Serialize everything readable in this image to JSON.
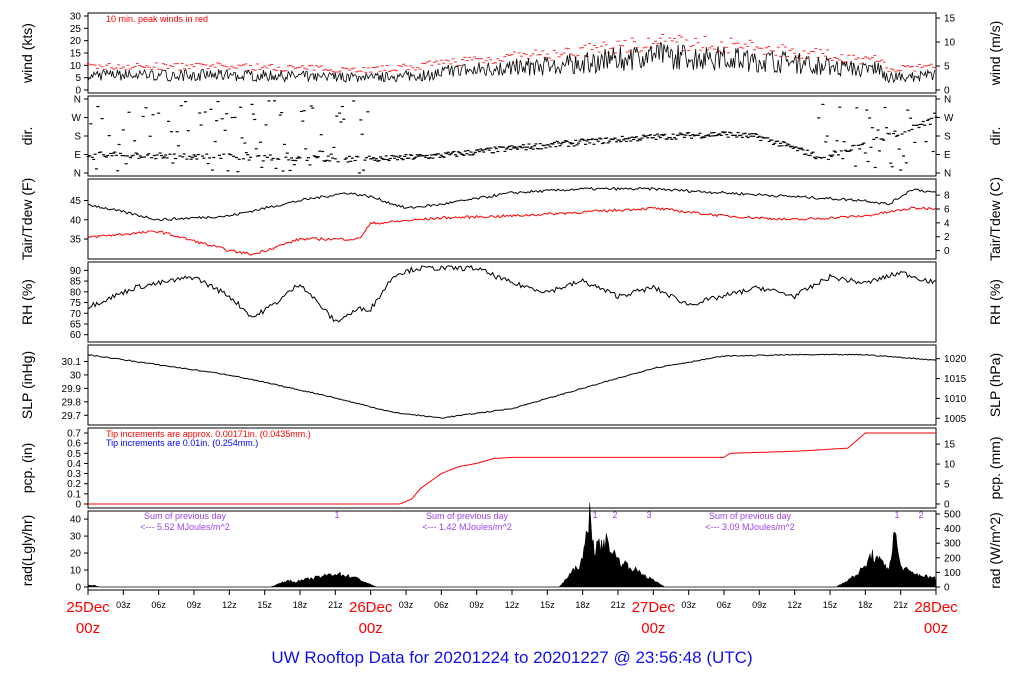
{
  "title": "UW Rooftop Data for 20201224  to  20201227 @ 23:56:48  (UTC)",
  "chart_data": [
    {
      "id": "wind",
      "type": "line",
      "ylabel": "wind (kts)",
      "y2label": "wind (m/s)",
      "ylim": [
        0,
        30
      ],
      "yticks": [
        0,
        5,
        10,
        15,
        20,
        25,
        30
      ],
      "y2lim": [
        0,
        15.43
      ],
      "y2ticks": [
        0,
        5,
        10,
        15
      ],
      "annotation": "10 min. peak winds in red",
      "annotation_color": "#ff0000",
      "series": [
        {
          "name": "wind",
          "color": "#000000",
          "x": [
            0,
            12,
            24,
            28,
            32,
            36,
            40,
            44,
            48,
            54,
            60,
            66,
            67,
            68,
            72
          ],
          "y": [
            6,
            6,
            5,
            6,
            8,
            9,
            10,
            12,
            14,
            13,
            11,
            8,
            9,
            5,
            6
          ]
        },
        {
          "name": "peak",
          "color": "#ff0000",
          "offset": 3
        }
      ]
    },
    {
      "id": "dir",
      "type": "scatter",
      "ylabel": "dir.",
      "y2label": "dir.",
      "ylim": [
        0,
        360
      ],
      "ytick_labels": [
        "N",
        "E",
        "S",
        "W",
        "N"
      ],
      "yticks": [
        0,
        90,
        180,
        270,
        360
      ],
      "series": [
        {
          "name": "direction",
          "color": "#000000",
          "x": [
            0,
            8,
            24,
            30,
            36,
            42,
            48,
            54,
            57,
            60,
            62,
            64,
            72
          ],
          "y": [
            90,
            80,
            65,
            85,
            120,
            150,
            175,
            190,
            175,
            120,
            80,
            100,
            260
          ]
        }
      ]
    },
    {
      "id": "temp",
      "type": "line",
      "ylabel": "Tair/Tdew (F)",
      "y2label": "Tair/Tdew (C)",
      "ylim": [
        30.6,
        49.8
      ],
      "yticks": [
        35,
        40,
        45
      ],
      "y2ticks": [
        0,
        2,
        4,
        6,
        8
      ],
      "series": [
        {
          "name": "Tair",
          "color": "#000000",
          "x": [
            0,
            6,
            12,
            18,
            22,
            24,
            27,
            30,
            36,
            42,
            48,
            54,
            60,
            66,
            68,
            70,
            72
          ],
          "y": [
            44,
            40,
            41,
            45,
            47,
            46,
            43,
            44,
            47,
            48,
            48,
            47,
            46,
            45,
            44,
            48,
            47
          ]
        },
        {
          "name": "Tdew",
          "color": "#ff0000",
          "x": [
            0,
            6,
            12,
            14,
            18,
            23,
            24,
            30,
            36,
            42,
            48,
            54,
            60,
            66,
            70,
            72
          ],
          "y": [
            35.5,
            37,
            32,
            31,
            35,
            35,
            39,
            40.5,
            41,
            42,
            43,
            41,
            40,
            41,
            43,
            43
          ]
        }
      ]
    },
    {
      "id": "rh",
      "type": "line",
      "ylabel": "RH (%)",
      "y2label": "RH (%)",
      "ylim": [
        58,
        92.5
      ],
      "yticks": [
        60,
        65,
        70,
        75,
        80,
        85,
        90
      ],
      "series": [
        {
          "name": "RH",
          "color": "#000000",
          "x": [
            0,
            4,
            9,
            12,
            14,
            16,
            18,
            21,
            23,
            24,
            26,
            28,
            33,
            36,
            39,
            42,
            45,
            48,
            51,
            54,
            57,
            60,
            63,
            66,
            69,
            72
          ],
          "y": [
            73,
            82,
            87,
            78,
            68,
            75,
            84,
            66,
            72,
            72,
            88,
            91,
            91,
            84,
            80,
            85,
            78,
            82,
            74,
            78,
            82,
            78,
            87,
            84,
            89,
            84
          ]
        }
      ]
    },
    {
      "id": "slp",
      "type": "line",
      "ylabel": "SLP (inHg)",
      "y2label": "SLP (hPa)",
      "ylim": [
        29.65,
        30.2
      ],
      "yticks": [
        29.7,
        29.8,
        29.9,
        30.0,
        30.1
      ],
      "y2ticks": [
        1005,
        1010,
        1015,
        1020
      ],
      "series": [
        {
          "name": "SLP",
          "color": "#000000",
          "x": [
            0,
            12,
            20,
            26,
            30,
            36,
            42,
            48,
            54,
            60,
            66,
            72
          ],
          "y": [
            30.15,
            30.0,
            29.85,
            29.72,
            29.68,
            29.75,
            29.9,
            30.05,
            30.14,
            30.15,
            30.15,
            30.11
          ]
        }
      ]
    },
    {
      "id": "pcp",
      "type": "line",
      "ylabel": "pcp. (in)",
      "y2label": "pcp. (mm)",
      "ylim": [
        -0.01,
        0.72
      ],
      "yticks": [
        0,
        0.1,
        0.2,
        0.3,
        0.4,
        0.5,
        0.6,
        0.7
      ],
      "y2ticks": [
        0,
        5,
        10,
        15
      ],
      "notes": [
        {
          "text": "Tip increments are approx. 0.00171in. (0.0435mm.)",
          "color": "#ff0000"
        },
        {
          "text": "Tip increments are 0.01in. (0.254mm.)",
          "color": "#0000ff"
        }
      ],
      "series": [
        {
          "name": "precip",
          "color": "#ff0000",
          "x": [
            0,
            26.5,
            27.5,
            28.2,
            30,
            31.5,
            33,
            34.5,
            36,
            54,
            54.5,
            60,
            64.5,
            65,
            66,
            72
          ],
          "y": [
            0,
            0,
            0.05,
            0.15,
            0.3,
            0.37,
            0.4,
            0.45,
            0.46,
            0.46,
            0.5,
            0.52,
            0.55,
            0.6,
            0.7,
            0.7
          ]
        }
      ]
    },
    {
      "id": "rad",
      "type": "area",
      "ylabel": "rad(Lgly/hr)",
      "y2label": "rad (W/m^2)",
      "ylim": [
        0,
        43
      ],
      "yticks": [
        0,
        10,
        20,
        30,
        40
      ],
      "y2ticks": [
        0,
        100,
        200,
        300,
        400,
        500
      ],
      "day_notes": [
        {
          "line1": "Sum of previous day",
          "line2": "<--- 5.52 MJoules/m^2"
        },
        {
          "line1": "Sum of previous day",
          "line2": "<--- 1.42 MJoules/m^2"
        },
        {
          "line1": "Sum of previous day",
          "line2": "<--- 3.09 MJoules/m^2"
        }
      ],
      "markers": [
        "1",
        "1",
        "2",
        "3",
        "1",
        "2"
      ],
      "series": [
        {
          "name": "radiation",
          "color": "#000000",
          "x": [
            0,
            0.5,
            1,
            15.5,
            17,
            17.5,
            19,
            21,
            22.5,
            24.5,
            40,
            41,
            42,
            42.6,
            43,
            44,
            45,
            47,
            49,
            63.5,
            65,
            66,
            66.5,
            68,
            68.5,
            69,
            70,
            72
          ],
          "y": [
            1,
            1,
            0,
            0,
            4,
            3,
            5,
            8,
            6,
            0,
            0,
            8,
            15,
            44,
            22,
            27,
            16,
            8,
            0,
            0,
            6,
            12,
            19,
            11,
            32,
            12,
            8,
            5
          ]
        }
      ]
    }
  ],
  "xaxis": {
    "hour_labels": [
      "03z",
      "06z",
      "09z",
      "12z",
      "15z",
      "18z",
      "21z"
    ],
    "days": [
      {
        "day": "25Dec",
        "hour": "00z"
      },
      {
        "day": "26Dec",
        "hour": "00z"
      },
      {
        "day": "27Dec",
        "hour": "00z"
      },
      {
        "day": "28Dec",
        "hour": "00z"
      }
    ]
  }
}
